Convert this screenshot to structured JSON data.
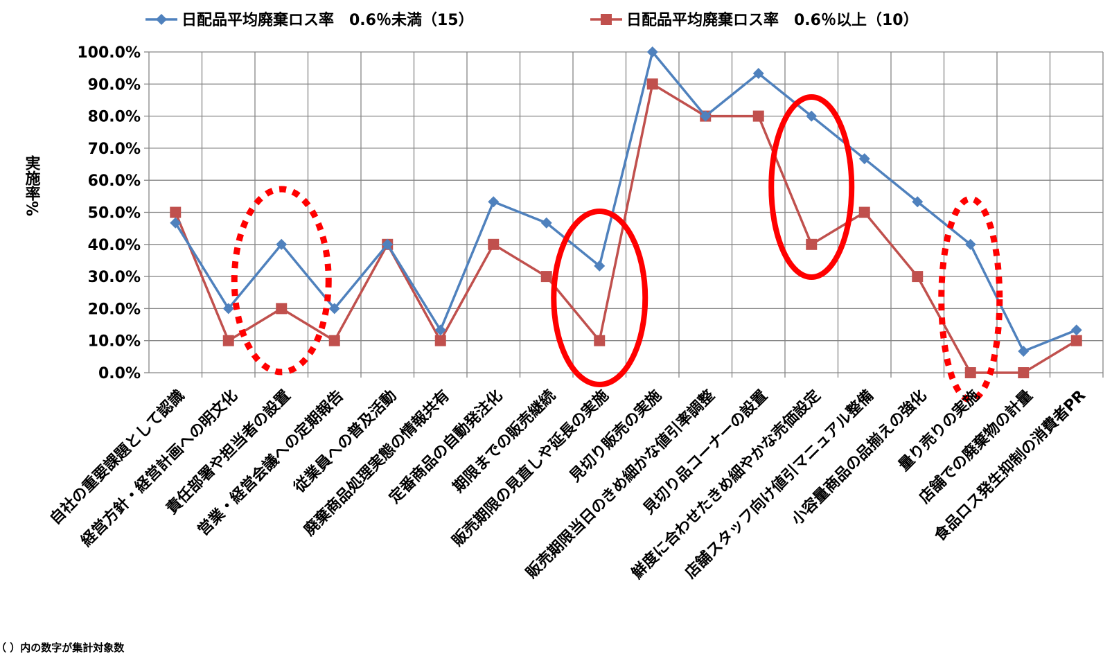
{
  "chart_data": {
    "type": "line",
    "title": "",
    "xlabel": "",
    "ylabel": "実施率%",
    "ylim": [
      0,
      100
    ],
    "yticks": [
      "0.0%",
      "10.0%",
      "20.0%",
      "30.0%",
      "40.0%",
      "50.0%",
      "60.0%",
      "70.0%",
      "80.0%",
      "90.0%",
      "100.0%"
    ],
    "grid": true,
    "legend": "top",
    "categories": [
      "自社の重要課題として認識",
      "経営方針・経営計画への明文化",
      "責任部署や担当者の設置",
      "営業・経営会議への定期報告",
      "従業員への普及活動",
      "廃棄商品処理実態の情報共有",
      "定番商品の自動発注化",
      "期限までの販売継続",
      "販売期限の見直しや延長の実施",
      "見切り販売の実施",
      "販売期限当日のきめ細かな値引率調整",
      "見切り品コーナーの設置",
      "鮮度に合わせたきめ細やかな売価設定",
      "店舗スタッフ向け値引マニュアル整備",
      "小容量商品の品揃えの強化",
      "量り売りの実施",
      "店舗での廃棄物の計量",
      "食品ロス発生抑制の消費者PR"
    ],
    "series": [
      {
        "name": "日配品平均廃棄ロス率　0.6％未満（15）",
        "color": "#4F81BD",
        "marker": "diamond",
        "values": [
          46.7,
          20.0,
          40.0,
          20.0,
          40.0,
          13.3,
          53.3,
          46.7,
          33.3,
          100.0,
          80.0,
          93.3,
          80.0,
          66.7,
          53.3,
          40.0,
          6.7,
          13.3
        ]
      },
      {
        "name": "日配品平均廃棄ロス率　0.6％以上（10）",
        "color": "#C0504D",
        "marker": "square",
        "values": [
          50.0,
          10.0,
          20.0,
          10.0,
          40.0,
          10.0,
          40.0,
          30.0,
          10.0,
          90.0,
          80.0,
          80.0,
          40.0,
          50.0,
          30.0,
          0.0,
          0.0,
          10.0
        ]
      }
    ],
    "annotations": [
      {
        "shape": "ellipse",
        "style": "dotted",
        "color": "#FF0000",
        "around_category_index": 2
      },
      {
        "shape": "ellipse",
        "style": "solid",
        "color": "#FF0000",
        "around_category_index": 8
      },
      {
        "shape": "ellipse",
        "style": "solid",
        "color": "#FF0000",
        "around_category_index": 12
      },
      {
        "shape": "ellipse",
        "style": "dotted",
        "color": "#FF0000",
        "around_category_index": 15
      }
    ]
  },
  "footnote": "（ ）内の数字が集計対象数"
}
